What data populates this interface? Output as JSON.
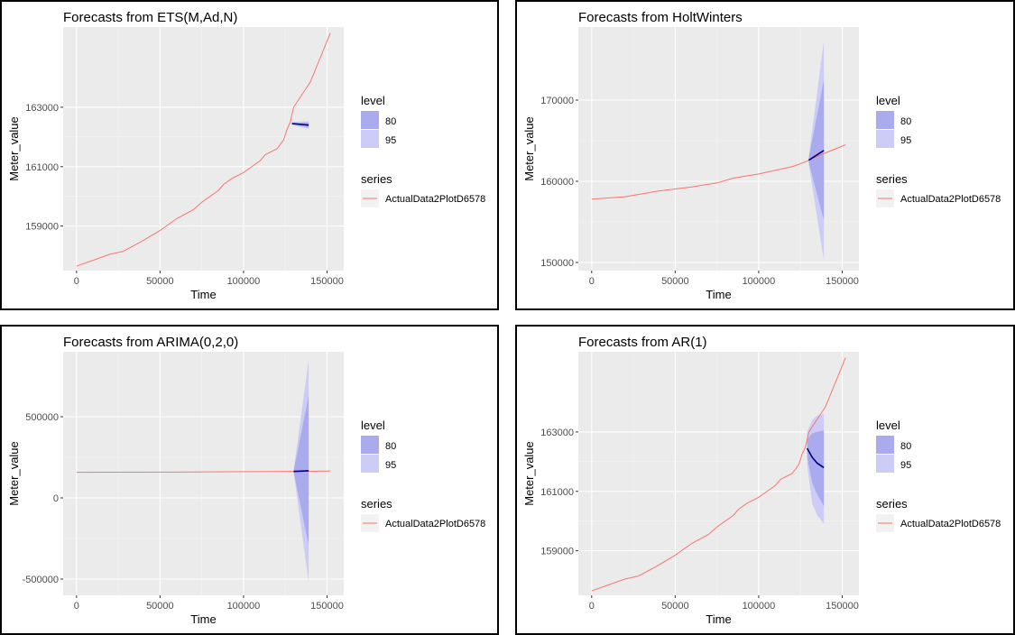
{
  "colors": {
    "panel_bg": "#ebebeb",
    "grid_major": "#ffffff",
    "series_actual": "#f8766d",
    "forecast_line": "#000080",
    "band80": "#aaaaee",
    "band95": "#ccccf6"
  },
  "legend": {
    "level_title": "level",
    "level_items": [
      "80",
      "95"
    ],
    "series_title": "series",
    "series_items": [
      "ActualData2PlotD6578"
    ]
  },
  "chart_data": [
    {
      "type": "line",
      "title": "Forecasts from ETS(M,Ad,N)",
      "xlabel": "Time",
      "ylabel": "Meter_value",
      "xlim": [
        -8000,
        160000
      ],
      "ylim": [
        157500,
        165700
      ],
      "xticks": [
        0,
        50000,
        100000,
        150000
      ],
      "xtick_labels": [
        "0",
        "50000",
        "100000",
        "150000"
      ],
      "yticks": [
        159000,
        161000,
        163000
      ],
      "ytick_labels": [
        "159000",
        "161000",
        "163000"
      ],
      "grid": true,
      "legend_position": "right",
      "series": [
        {
          "name": "ActualData2PlotD6578",
          "x": [
            0,
            10000,
            20000,
            28000,
            38000,
            50000,
            60000,
            70000,
            75000,
            80000,
            85000,
            88000,
            93000,
            100000,
            110000,
            113000,
            120000,
            124000,
            126000,
            128000,
            130000,
            140000,
            152000
          ],
          "y": [
            157650,
            157850,
            158050,
            158150,
            158450,
            158850,
            159250,
            159550,
            159800,
            160000,
            160200,
            160400,
            160600,
            160800,
            161200,
            161400,
            161600,
            161900,
            162250,
            162500,
            163000,
            163850,
            165500
          ]
        }
      ],
      "forecast": {
        "x": [
          129000,
          139000
        ],
        "y": [
          162450,
          162400
        ],
        "band80": {
          "lo": [
            162420,
            162320
          ],
          "hi": [
            162480,
            162480
          ]
        },
        "band95": {
          "lo": [
            162400,
            162270
          ],
          "hi": [
            162500,
            162530
          ]
        }
      }
    },
    {
      "type": "line",
      "title": "Forecasts from HoltWinters",
      "xlabel": "Time",
      "ylabel": "Meter_value",
      "xlim": [
        -8000,
        160000
      ],
      "ylim": [
        149000,
        179000
      ],
      "xticks": [
        0,
        50000,
        100000,
        150000
      ],
      "xtick_labels": [
        "0",
        "50000",
        "100000",
        "150000"
      ],
      "yticks": [
        150000,
        160000,
        170000
      ],
      "ytick_labels": [
        "150000",
        "160000",
        "170000"
      ],
      "grid": true,
      "legend_position": "right",
      "series": [
        {
          "name": "ActualData2PlotD6578",
          "x": [
            0,
            20000,
            40000,
            60000,
            75000,
            85000,
            100000,
            120000,
            128000,
            130000,
            140000,
            152000
          ],
          "y": [
            157800,
            158100,
            158800,
            159300,
            159800,
            160400,
            160900,
            161800,
            162400,
            162600,
            163500,
            164500
          ]
        }
      ],
      "forecast": {
        "x": [
          130000,
          139000
        ],
        "y": [
          162600,
          163800
        ],
        "band80": {
          "lo": [
            162300,
            155200
          ],
          "hi": [
            162900,
            172500
          ]
        },
        "band95": {
          "lo": [
            162100,
            150300
          ],
          "hi": [
            163100,
            177300
          ]
        }
      }
    },
    {
      "type": "line",
      "title": "Forecasts from ARIMA(0,2,0)",
      "xlabel": "Time",
      "ylabel": "Meter_value",
      "xlim": [
        -8000,
        160000
      ],
      "ylim": [
        -600000,
        900000
      ],
      "xticks": [
        0,
        50000,
        100000,
        150000
      ],
      "xtick_labels": [
        "0",
        "50000",
        "100000",
        "150000"
      ],
      "yticks": [
        -500000,
        0,
        500000
      ],
      "ytick_labels": [
        "-500000",
        "0",
        "500000"
      ],
      "grid": true,
      "legend_position": "right",
      "series": [
        {
          "name": "ActualData2PlotD6578",
          "x": [
            0,
            60000,
            130000,
            152000
          ],
          "y": [
            157700,
            159300,
            163000,
            165500
          ]
        }
      ],
      "forecast": {
        "x": [
          130000,
          139000
        ],
        "y": [
          163000,
          167000
        ],
        "band80": {
          "lo": [
            160000,
            -290000
          ],
          "hi": [
            166000,
            630000
          ]
        },
        "band95": {
          "lo": [
            158000,
            -520000
          ],
          "hi": [
            168000,
            850000
          ]
        }
      }
    },
    {
      "type": "line",
      "title": "Forecasts from AR(1)",
      "xlabel": "Time",
      "ylabel": "Meter_value",
      "xlim": [
        -8000,
        160000
      ],
      "ylim": [
        157500,
        165700
      ],
      "xticks": [
        0,
        50000,
        100000,
        150000
      ],
      "xtick_labels": [
        "0",
        "50000",
        "100000",
        "150000"
      ],
      "yticks": [
        159000,
        161000,
        163000
      ],
      "ytick_labels": [
        "159000",
        "161000",
        "163000"
      ],
      "grid": true,
      "legend_position": "right",
      "series": [
        {
          "name": "ActualData2PlotD6578",
          "x": [
            0,
            10000,
            20000,
            28000,
            38000,
            50000,
            60000,
            70000,
            75000,
            80000,
            85000,
            88000,
            93000,
            100000,
            110000,
            113000,
            120000,
            124000,
            126000,
            128000,
            130000,
            140000,
            152000
          ],
          "y": [
            157650,
            157850,
            158050,
            158150,
            158450,
            158850,
            159250,
            159550,
            159800,
            160000,
            160200,
            160400,
            160600,
            160800,
            161200,
            161400,
            161600,
            161900,
            162250,
            162500,
            163000,
            163850,
            165500
          ]
        }
      ],
      "forecast": {
        "x": [
          129000,
          132000,
          135000,
          139000
        ],
        "y": [
          162450,
          162150,
          161950,
          161800
        ],
        "band80": {
          "lo": [
            162150,
            161300,
            160900,
            160500
          ],
          "hi": [
            162750,
            162950,
            163000,
            163050
          ]
        },
        "band95": {
          "lo": [
            161900,
            160600,
            160200,
            159900
          ],
          "hi": [
            163000,
            163400,
            163550,
            163600
          ]
        }
      }
    }
  ]
}
